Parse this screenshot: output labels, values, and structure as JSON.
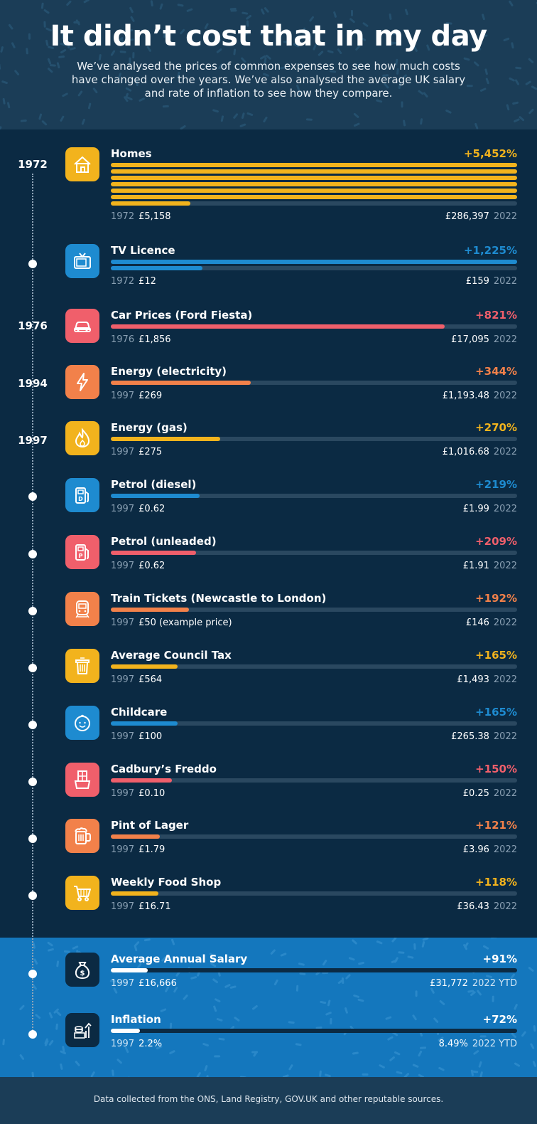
{
  "header": {
    "title": "It didn’t cost that in my day",
    "subtitle": "We’ve analysed the prices of common expenses to see how much costs have changed over the years. We’ve also analysed the average UK salary and rate of inflation to see how they compare."
  },
  "timeline": {
    "years": [
      "1972",
      "1976",
      "1994",
      "1997"
    ]
  },
  "colors": {
    "yellow": "#f2b31d",
    "blue": "#1e8bd0",
    "red": "#f05f6b",
    "orange": "#f2814a",
    "white": "#ffffff",
    "background": "#0b2a43",
    "band": "#1477bd"
  },
  "items": [
    {
      "title": "Homes",
      "pct": "+5,452%",
      "pct_value": 5452,
      "start_year": "1972",
      "start_value": "£5,158",
      "end_value": "£286,397",
      "end_year": "2022",
      "icon": "house-icon",
      "color": "yellow",
      "bar_fill_lines": [
        1,
        1,
        1,
        1,
        1,
        1,
        0.195
      ]
    },
    {
      "title": "TV Licence",
      "pct": "+1,225%",
      "pct_value": 1225,
      "start_year": "1972",
      "start_value": "£12",
      "end_value": "£159",
      "end_year": "2022",
      "icon": "tv-icon",
      "color": "blue",
      "bar_fill_lines": [
        1,
        0.225
      ]
    },
    {
      "title": "Car Prices (Ford Fiesta)",
      "pct": "+821%",
      "pct_value": 821,
      "start_year": "1976",
      "start_value": "£1,856",
      "end_value": "£17,095",
      "end_year": "2022",
      "icon": "car-icon",
      "color": "red",
      "bar_fill": 0.821
    },
    {
      "title": "Energy (electricity)",
      "pct": "+344%",
      "pct_value": 344,
      "start_year": "1997",
      "start_value": "£269",
      "end_value": "£1,193.48",
      "end_year": "2022",
      "icon": "lightning-icon",
      "color": "orange",
      "bar_fill": 0.344
    },
    {
      "title": "Energy (gas)",
      "pct": "+270%",
      "pct_value": 270,
      "start_year": "1997",
      "start_value": "£275",
      "end_value": "£1,016.68",
      "end_year": "2022",
      "icon": "flame-icon",
      "color": "yellow",
      "bar_fill": 0.27
    },
    {
      "title": "Petrol (diesel)",
      "pct": "+219%",
      "pct_value": 219,
      "start_year": "1997",
      "start_value": "£0.62",
      "end_value": "£1.99",
      "end_year": "2022",
      "icon": "diesel-pump-icon",
      "color": "blue",
      "bar_fill": 0.219
    },
    {
      "title": "Petrol (unleaded)",
      "pct": "+209%",
      "pct_value": 209,
      "start_year": "1997",
      "start_value": "£0.62",
      "end_value": "£1.91",
      "end_year": "2022",
      "icon": "petrol-pump-icon",
      "color": "red",
      "bar_fill": 0.209
    },
    {
      "title": "Train Tickets (Newcastle  to London)",
      "pct": "+192%",
      "pct_value": 192,
      "start_year": "1997",
      "start_value": "£50 (example price)",
      "end_value": "£146",
      "end_year": "2022",
      "icon": "train-icon",
      "color": "orange",
      "bar_fill": 0.192
    },
    {
      "title": "Average Council Tax",
      "pct": "+165%",
      "pct_value": 165,
      "start_year": "1997",
      "start_value": "£564",
      "end_value": "£1,493",
      "end_year": "2022",
      "icon": "bin-icon",
      "color": "yellow",
      "bar_fill": 0.165
    },
    {
      "title": "Childcare",
      "pct": "+165%",
      "pct_value": 165,
      "start_year": "1997",
      "start_value": "£100",
      "end_value": "£265.38",
      "end_year": "2022",
      "icon": "baby-face-icon",
      "color": "blue",
      "bar_fill": 0.165
    },
    {
      "title": "Cadbury’s Freddo",
      "pct": "+150%",
      "pct_value": 150,
      "start_year": "1997",
      "start_value": "£0.10",
      "end_value": "£0.25",
      "end_year": "2022",
      "icon": "chocolate-bar-icon",
      "color": "red",
      "bar_fill": 0.15
    },
    {
      "title": "Pint of Lager",
      "pct": "+121%",
      "pct_value": 121,
      "start_year": "1997",
      "start_value": "£1.79",
      "end_value": "£3.96",
      "end_year": "2022",
      "icon": "beer-mug-icon",
      "color": "orange",
      "bar_fill": 0.121
    },
    {
      "title": "Weekly Food Shop",
      "pct": "+118%",
      "pct_value": 118,
      "start_year": "1997",
      "start_value": "£16.71",
      "end_value": "£36.43",
      "end_year": "2022",
      "icon": "shopping-cart-icon",
      "color": "yellow",
      "bar_fill": 0.118
    }
  ],
  "band_items": [
    {
      "title": "Average Annual Salary",
      "pct": "+91%",
      "pct_value": 91,
      "start_year": "1997",
      "start_value": "£16,666",
      "end_value": "£31,772",
      "end_year": "2022 YTD",
      "icon": "money-bag-icon",
      "color": "white",
      "bar_fill": 0.091
    },
    {
      "title": "Inflation",
      "pct": "+72%",
      "pct_value": 72,
      "start_year": "1997",
      "start_value": "2.2%",
      "end_value": "8.49%",
      "end_year": "2022 YTD",
      "icon": "coins-chart-icon",
      "color": "white",
      "bar_fill": 0.072
    }
  ],
  "footer": {
    "text": "Data collected from the ONS, Land Registry, GOV.UK and other reputable sources."
  }
}
